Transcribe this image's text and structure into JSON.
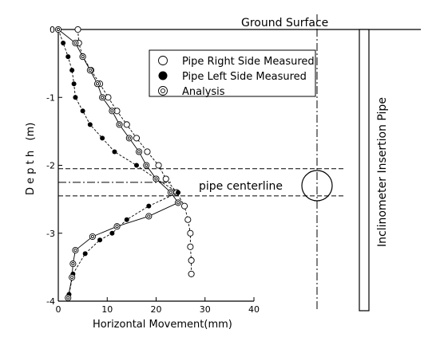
{
  "chart_data": {
    "type": "scatter",
    "xlabel": "Horizontal Movement(mm)",
    "ylabel": "D e p t h   (m)",
    "xlim": [
      0,
      40
    ],
    "ylim": [
      -4,
      0
    ],
    "x_ticks": [
      "0",
      "10",
      "20",
      "30",
      "40"
    ],
    "y_ticks": [
      "0",
      "-1",
      "-2",
      "-3",
      "-4"
    ],
    "grid": false,
    "legend_position": "top-right",
    "series": [
      {
        "name": "Pipe Right Side Measured",
        "marker": "open-circle",
        "line": "dashed",
        "points": [
          {
            "x": 4.0,
            "y": 0.0
          },
          {
            "x": 4.2,
            "y": -0.2
          },
          {
            "x": 5.0,
            "y": -0.4
          },
          {
            "x": 6.7,
            "y": -0.6
          },
          {
            "x": 8.5,
            "y": -0.8
          },
          {
            "x": 10.2,
            "y": -1.0
          },
          {
            "x": 12.0,
            "y": -1.2
          },
          {
            "x": 14.0,
            "y": -1.4
          },
          {
            "x": 16.0,
            "y": -1.6
          },
          {
            "x": 18.2,
            "y": -1.8
          },
          {
            "x": 20.5,
            "y": -2.0
          },
          {
            "x": 22.0,
            "y": -2.2
          },
          {
            "x": 24.2,
            "y": -2.4
          },
          {
            "x": 25.8,
            "y": -2.6
          },
          {
            "x": 26.5,
            "y": -2.8
          },
          {
            "x": 27.0,
            "y": -3.0
          },
          {
            "x": 27.0,
            "y": -3.2
          },
          {
            "x": 27.2,
            "y": -3.4
          },
          {
            "x": 27.2,
            "y": -3.6
          }
        ]
      },
      {
        "name": "Pipe Left Side Measured",
        "marker": "filled-circle",
        "line": "dashed",
        "points": [
          {
            "x": 0.0,
            "y": 0.0
          },
          {
            "x": 1.0,
            "y": -0.2
          },
          {
            "x": 2.0,
            "y": -0.4
          },
          {
            "x": 2.8,
            "y": -0.6
          },
          {
            "x": 3.2,
            "y": -0.8
          },
          {
            "x": 3.5,
            "y": -1.0
          },
          {
            "x": 5.0,
            "y": -1.2
          },
          {
            "x": 6.5,
            "y": -1.4
          },
          {
            "x": 9.0,
            "y": -1.6
          },
          {
            "x": 11.5,
            "y": -1.8
          },
          {
            "x": 16.0,
            "y": -2.0
          },
          {
            "x": 20.0,
            "y": -2.2
          },
          {
            "x": 24.5,
            "y": -2.4
          },
          {
            "x": 18.5,
            "y": -2.6
          },
          {
            "x": 14.0,
            "y": -2.8
          },
          {
            "x": 11.0,
            "y": -3.0
          },
          {
            "x": 8.5,
            "y": -3.1
          },
          {
            "x": 5.5,
            "y": -3.3
          },
          {
            "x": 3.0,
            "y": -3.6
          },
          {
            "x": 2.2,
            "y": -3.9
          }
        ]
      },
      {
        "name": "Analysis",
        "marker": "double-circle",
        "line": "solid",
        "points": [
          {
            "x": 0.0,
            "y": 0.0
          },
          {
            "x": 3.5,
            "y": -0.2
          },
          {
            "x": 5.0,
            "y": -0.4
          },
          {
            "x": 6.5,
            "y": -0.6
          },
          {
            "x": 8.0,
            "y": -0.8
          },
          {
            "x": 9.0,
            "y": -1.0
          },
          {
            "x": 11.0,
            "y": -1.2
          },
          {
            "x": 12.5,
            "y": -1.4
          },
          {
            "x": 14.5,
            "y": -1.6
          },
          {
            "x": 16.5,
            "y": -1.8
          },
          {
            "x": 18.0,
            "y": -2.0
          },
          {
            "x": 20.0,
            "y": -2.2
          },
          {
            "x": 23.0,
            "y": -2.4
          },
          {
            "x": 24.5,
            "y": -2.55
          },
          {
            "x": 18.5,
            "y": -2.75
          },
          {
            "x": 12.0,
            "y": -2.9
          },
          {
            "x": 7.0,
            "y": -3.05
          },
          {
            "x": 3.5,
            "y": -3.25
          },
          {
            "x": 3.0,
            "y": -3.45
          },
          {
            "x": 2.8,
            "y": -3.65
          },
          {
            "x": 2.0,
            "y": -3.95
          }
        ]
      }
    ],
    "annotations": {
      "ground_surface": "Ground Surface",
      "pipe_centerline": "pipe centerline",
      "inclinometer": "Inclinometer Insertion Pipe"
    },
    "reference_depths": {
      "pipe_top": -2.05,
      "pipe_center": -2.25,
      "pipe_bottom": -2.45
    }
  }
}
